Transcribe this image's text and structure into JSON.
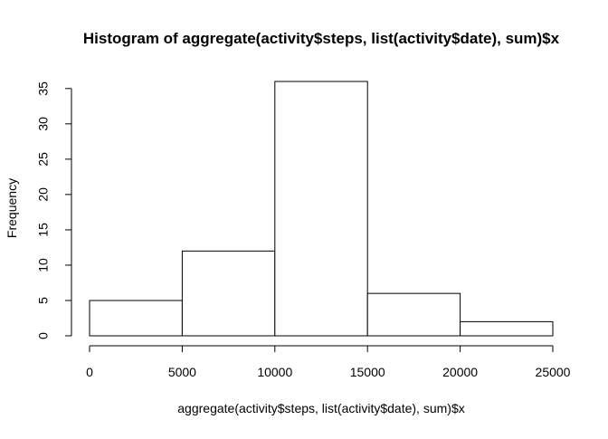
{
  "chart_data": {
    "type": "bar",
    "subtype": "histogram",
    "title": "Histogram of aggregate(activity$steps, list(activity$date), sum)$x",
    "xlabel": "aggregate(activity$steps, list(activity$date), sum)$x",
    "ylabel": "Frequency",
    "bins": [
      {
        "start": 0,
        "end": 5000,
        "count": 5
      },
      {
        "start": 5000,
        "end": 10000,
        "count": 12
      },
      {
        "start": 10000,
        "end": 15000,
        "count": 36
      },
      {
        "start": 15000,
        "end": 20000,
        "count": 6
      },
      {
        "start": 20000,
        "end": 25000,
        "count": 2
      }
    ],
    "xlim": [
      0,
      25000
    ],
    "ylim": [
      0,
      36
    ],
    "x_ticks": [
      "0",
      "5000",
      "10000",
      "15000",
      "20000",
      "25000"
    ],
    "x_tick_values": [
      0,
      5000,
      10000,
      15000,
      20000,
      25000
    ],
    "y_ticks": [
      "0",
      "5",
      "10",
      "15",
      "20",
      "25",
      "30",
      "35"
    ],
    "y_tick_values": [
      0,
      5,
      10,
      15,
      20,
      25,
      30,
      35
    ],
    "grid": false,
    "legend": "none",
    "bar_fill": "#ffffff",
    "bar_stroke": "#000000"
  }
}
